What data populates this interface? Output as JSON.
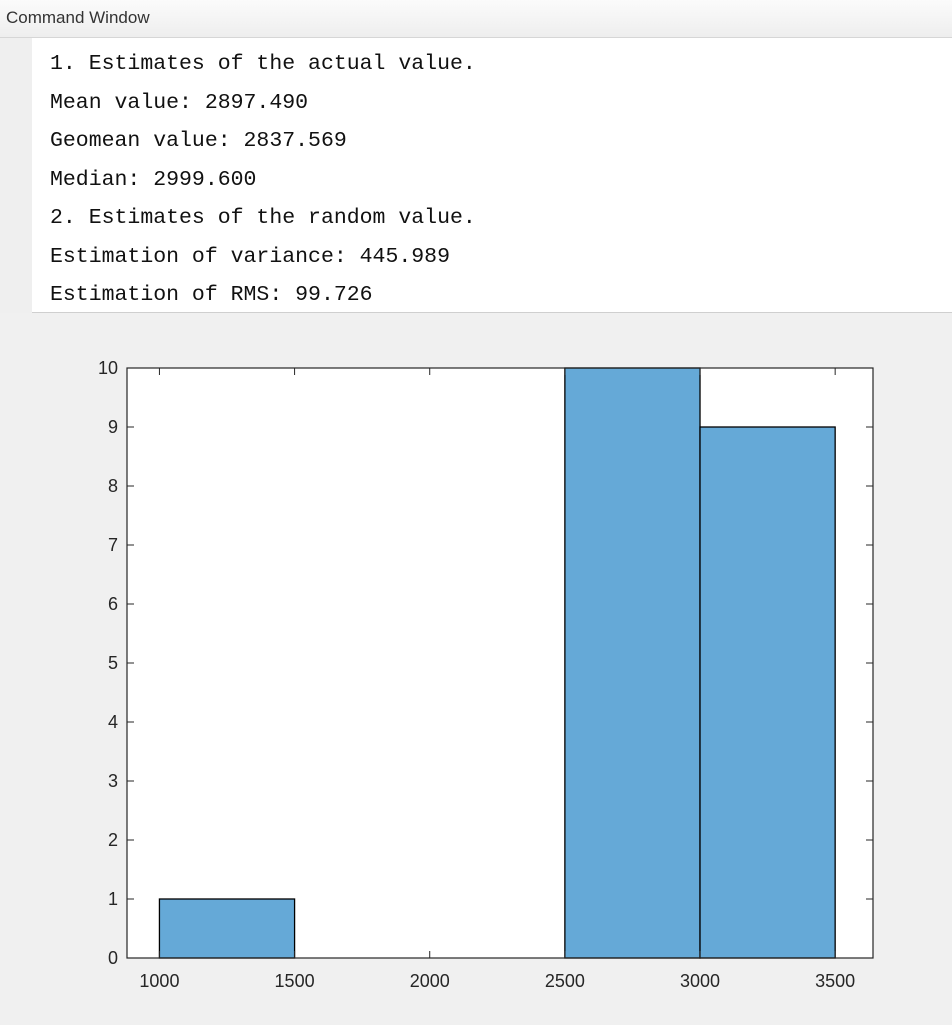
{
  "command_window": {
    "title": "Command Window",
    "lines": [
      "1. Estimates of the actual value.",
      "Mean value: 2897.490",
      "Geomean value: 2837.569",
      "Median: 2999.600",
      "2. Estimates of the random value.",
      "Estimation of variance: 445.989",
      "Estimation of RMS: 99.726"
    ]
  },
  "colors": {
    "bar_fill": "#65a9d7",
    "bar_edge": "#000000",
    "axes_bg": "#ffffff",
    "figure_bg": "#f0f0f0"
  },
  "chart_data": {
    "type": "bar",
    "bin_edges": [
      1000,
      1500,
      2000,
      2500,
      3000,
      3500
    ],
    "values": [
      1,
      0,
      0,
      10,
      9
    ],
    "xlim": [
      880,
      3640
    ],
    "ylim": [
      0,
      10
    ],
    "x_ticks": [
      1000,
      1500,
      2000,
      2500,
      3000,
      3500
    ],
    "y_ticks": [
      0,
      1,
      2,
      3,
      4,
      5,
      6,
      7,
      8,
      9,
      10
    ],
    "title": "",
    "xlabel": "",
    "ylabel": "",
    "grid": false
  }
}
